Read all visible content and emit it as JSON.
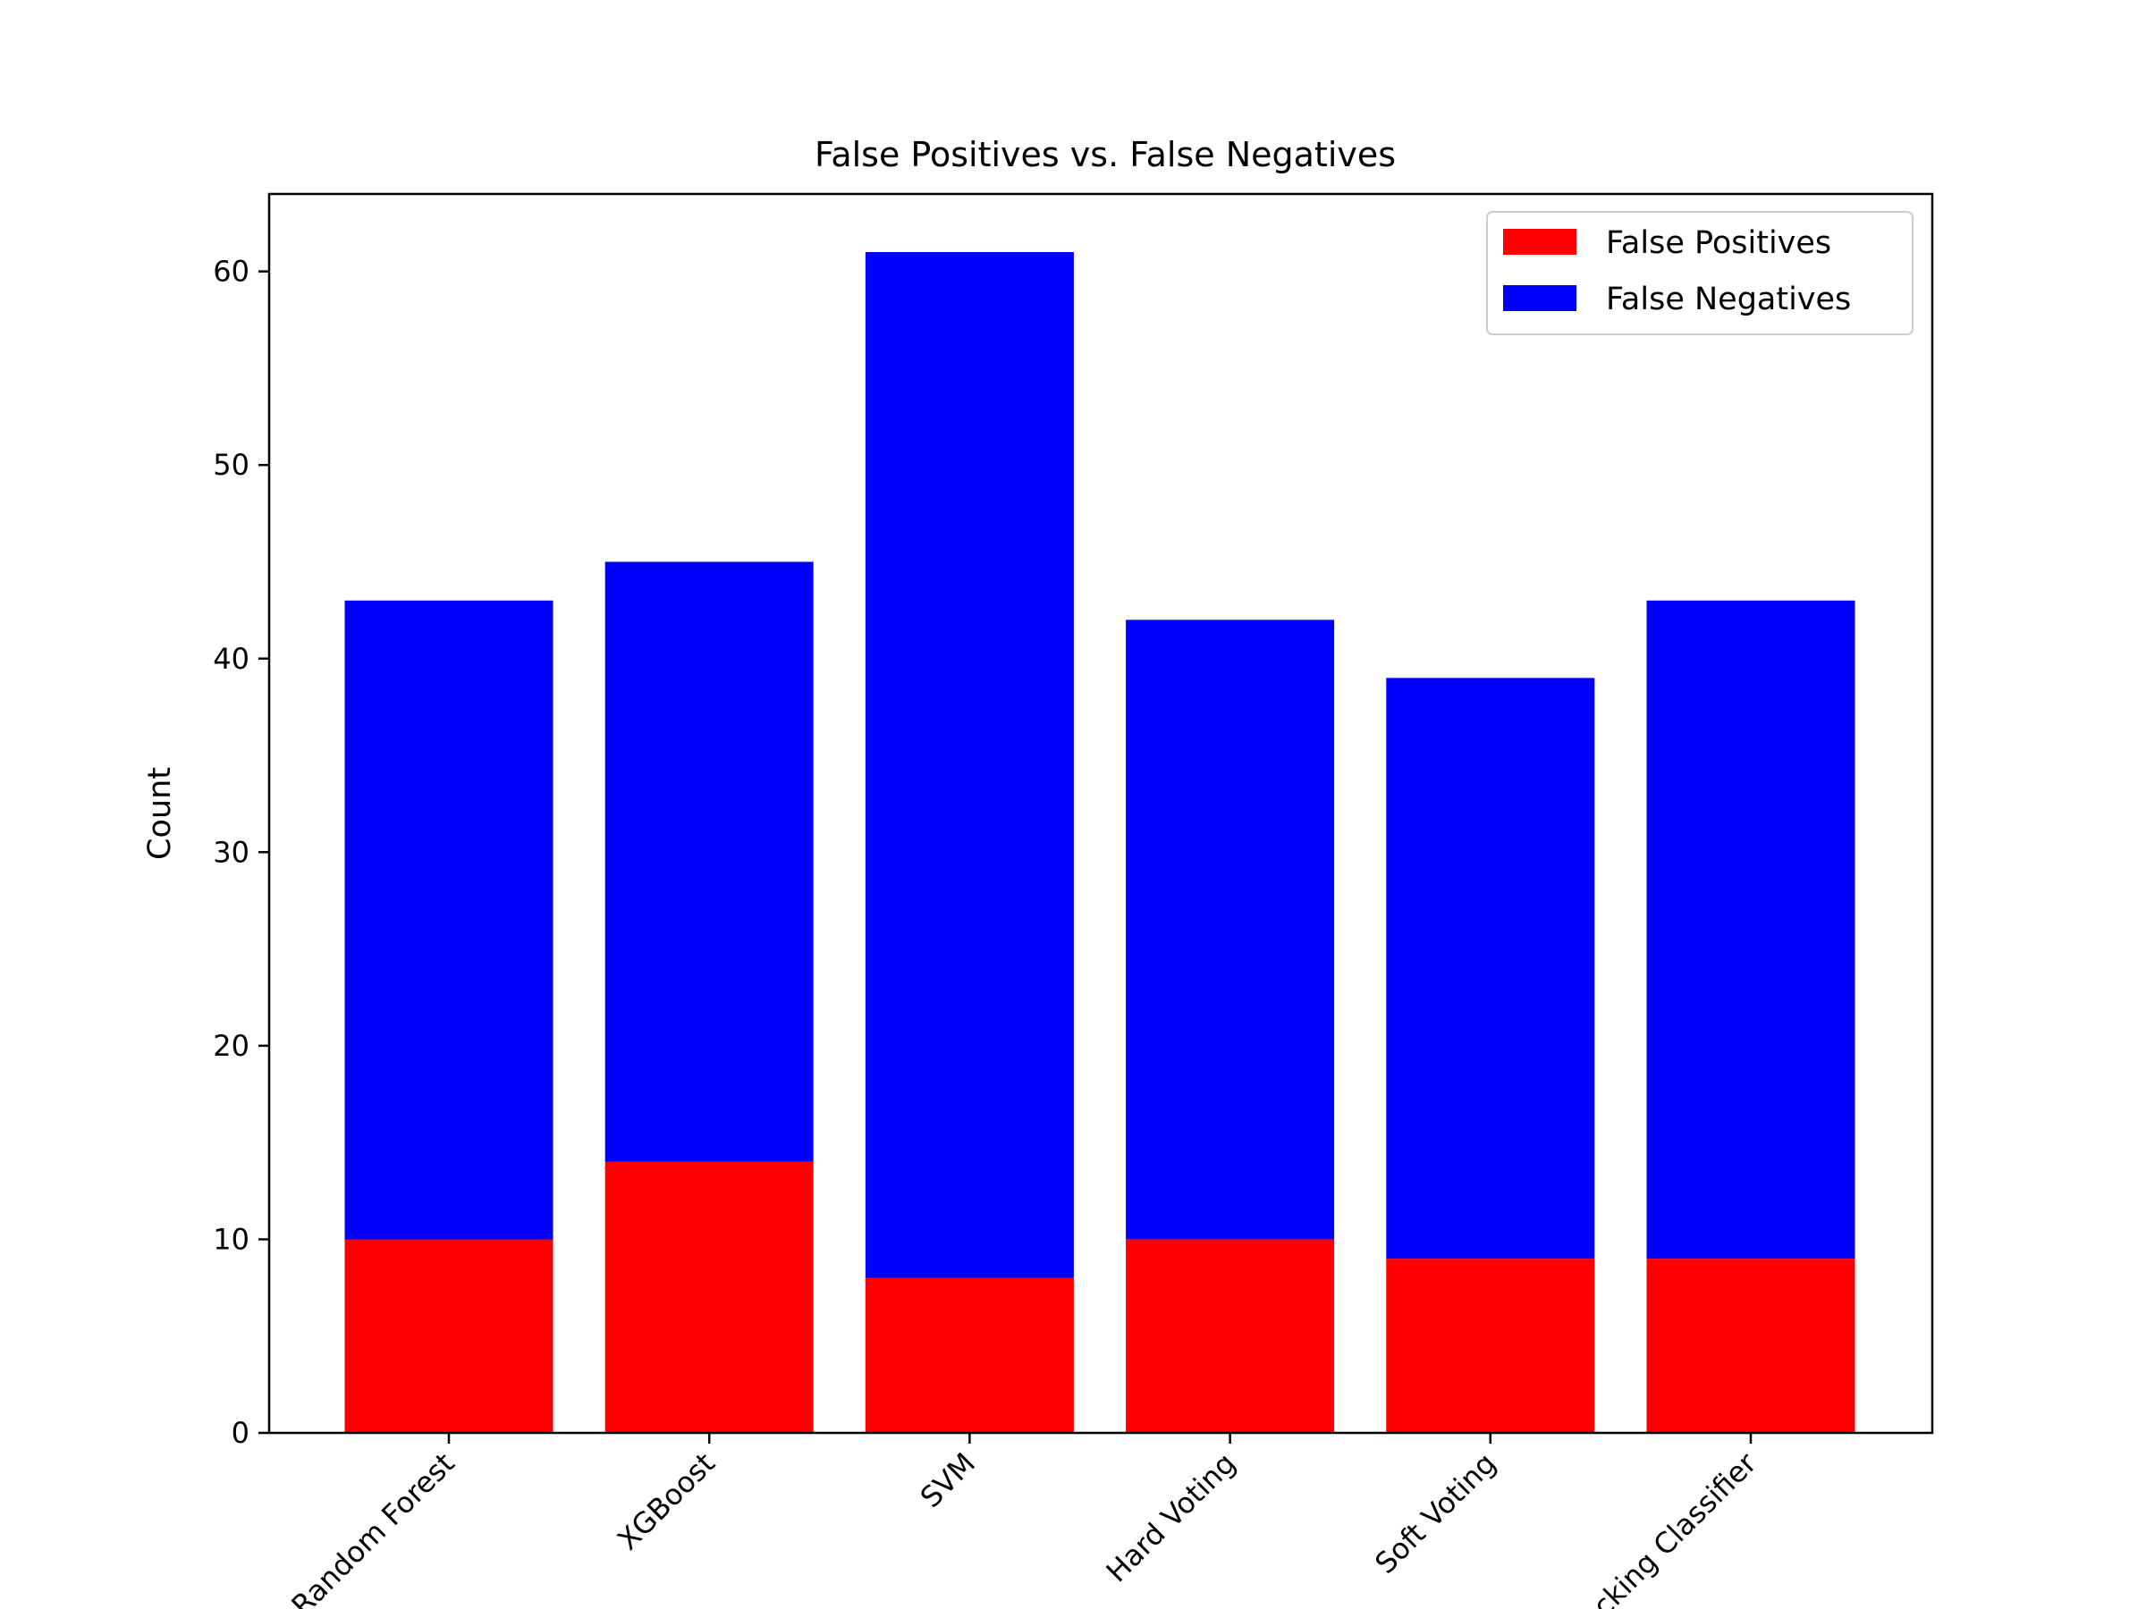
{
  "chart_data": {
    "type": "bar",
    "stacked": true,
    "title": "False Positives vs. False Negatives",
    "xlabel": "",
    "ylabel": "Count",
    "categories": [
      "Random Forest",
      "XGBoost",
      "SVM",
      "Hard Voting",
      "Soft Voting",
      "Stacking Classifier"
    ],
    "series": [
      {
        "name": "False Positives",
        "color": "#ff0000",
        "values": [
          10,
          14,
          8,
          10,
          9,
          9
        ]
      },
      {
        "name": "False Negatives",
        "color": "#0000ff",
        "values": [
          33,
          31,
          53,
          32,
          30,
          34
        ]
      }
    ],
    "ylim": [
      0,
      64
    ],
    "yticks": [
      0,
      10,
      20,
      30,
      40,
      50,
      60
    ],
    "xtick_rotation": 45,
    "grid": false,
    "legend": "top-right"
  }
}
